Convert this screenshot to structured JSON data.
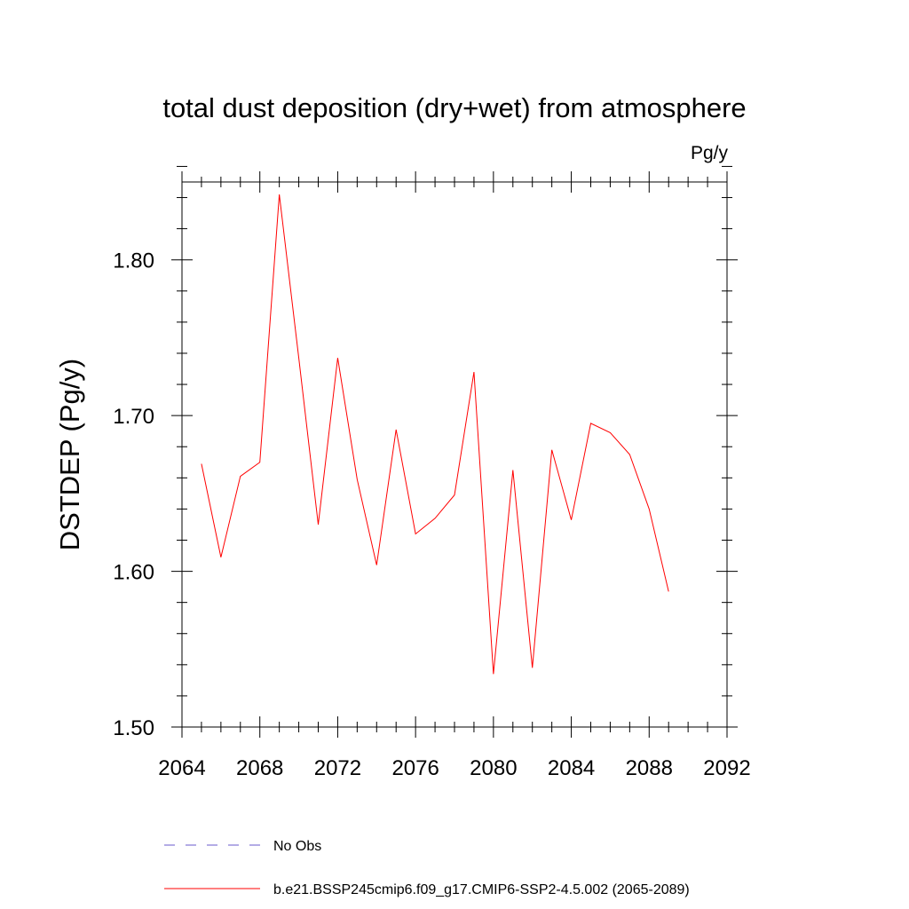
{
  "chart_data": {
    "type": "line",
    "title": "total dust deposition (dry+wet) from atmosphere",
    "units_label": "Pg/y",
    "ylabel": "DSTDEP  (Pg/y)",
    "xlabel": "",
    "xlim": [
      2064,
      2092
    ],
    "ylim": [
      1.5,
      1.85
    ],
    "x_ticks": [
      2064,
      2068,
      2072,
      2076,
      2080,
      2084,
      2088,
      2092
    ],
    "x_tick_labels": [
      "2064",
      "2068",
      "2072",
      "2076",
      "2080",
      "2084",
      "2088",
      "2092"
    ],
    "y_ticks": [
      1.5,
      1.6,
      1.7,
      1.8
    ],
    "y_tick_labels": [
      "1.50",
      "1.60",
      "1.70",
      "1.80"
    ],
    "grid": false,
    "series": [
      {
        "name": "b.e21.BSSP245cmip6.f09_g17.CMIP6-SSP2-4.5.002 (2065-2089)",
        "color": "#ff0000",
        "style": "solid",
        "x": [
          2065,
          2066,
          2067,
          2068,
          2069,
          2070,
          2071,
          2072,
          2073,
          2074,
          2075,
          2076,
          2077,
          2078,
          2079,
          2080,
          2081,
          2082,
          2083,
          2084,
          2085,
          2086,
          2087,
          2088,
          2089
        ],
        "values": [
          1.669,
          1.609,
          1.661,
          1.67,
          1.842,
          1.737,
          1.63,
          1.737,
          1.659,
          1.604,
          1.691,
          1.624,
          1.634,
          1.649,
          1.728,
          1.534,
          1.665,
          1.538,
          1.678,
          1.633,
          1.695,
          1.689,
          1.675,
          1.64,
          1.587
        ]
      }
    ],
    "legend": {
      "placement": "bottom",
      "entries": [
        {
          "label": "No Obs",
          "color": "#6a5acd",
          "style": "dashed"
        },
        {
          "label": "b.e21.BSSP245cmip6.f09_g17.CMIP6-SSP2-4.5.002 (2065-2089)",
          "color": "#ff0000",
          "style": "solid"
        }
      ]
    }
  }
}
